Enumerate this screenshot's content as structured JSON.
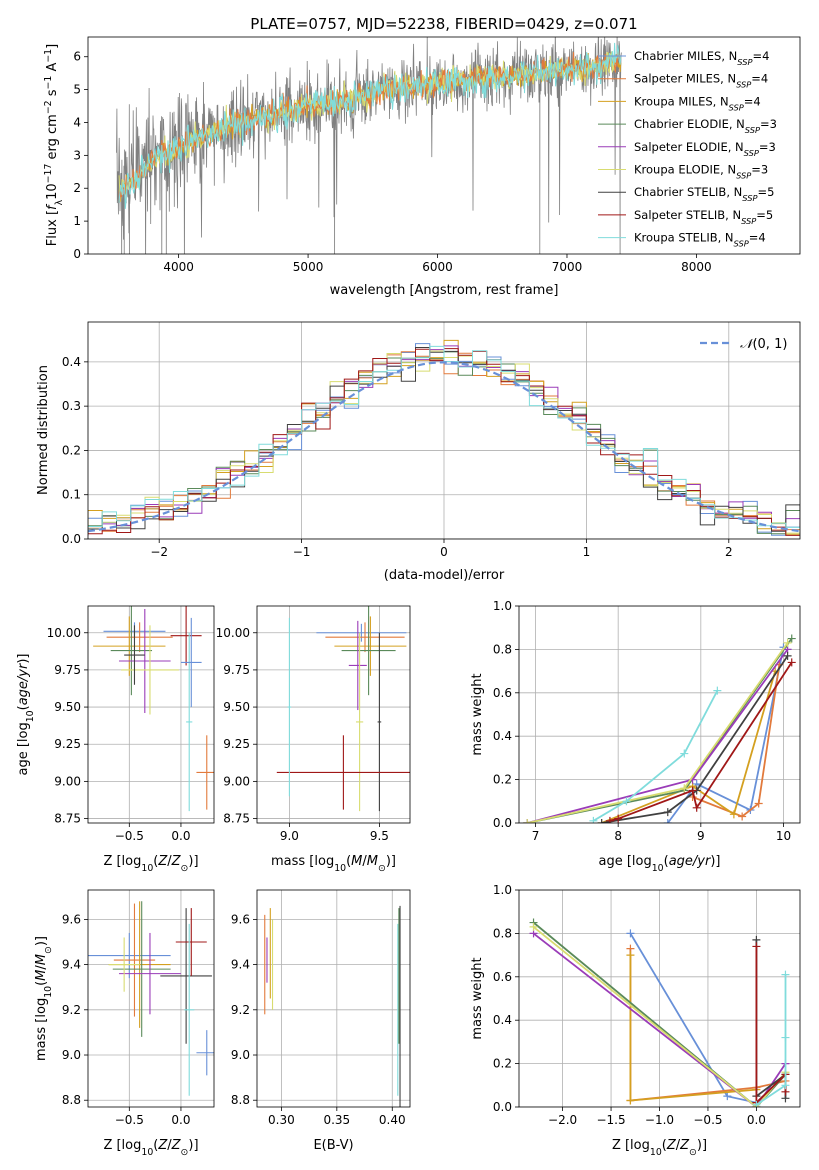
{
  "colors": {
    "chabrier_miles": "#6890d8",
    "salpeter_miles": "#e27a3c",
    "kroupa_miles": "#d4a020",
    "chabrier_elodie": "#5a8a5a",
    "salpeter_elodie": "#9a3cb8",
    "kroupa_elodie": "#d8dc70",
    "chabrier_stelib": "#404040",
    "salpeter_stelib": "#a01818",
    "kroupa_stelib": "#80dcdc",
    "data_spectrum": "#808080",
    "normal": "#6890d8",
    "grid": "#b0b0b0"
  },
  "chart_data": [
    {
      "id": "spectrum",
      "type": "line",
      "title": "PLATE=0757, MJD=52238, FIBERID=0429, z=0.071",
      "xlabel": "wavelength [Angstrom, rest frame]",
      "ylabel": "Flux [fλ10⁻¹⁷ erg cm⁻² s⁻¹ A⁻¹]",
      "xlim": [
        3300,
        8800
      ],
      "ylim": [
        0,
        6.6
      ],
      "xticks": [
        "4000",
        "5000",
        "6000",
        "7000",
        "8000"
      ],
      "yticks": [
        "0",
        "1",
        "2",
        "3",
        "4",
        "5",
        "6"
      ],
      "continuum": {
        "x": [
          3520,
          3600,
          3700,
          3800,
          3900,
          4000,
          4100,
          4200,
          4300,
          4400,
          4600,
          4800,
          5000,
          5200,
          5400,
          5600,
          5800,
          6000,
          6200,
          6400,
          6600,
          6800,
          7000,
          7200,
          7400
        ],
        "y": [
          2.1,
          2.3,
          2.5,
          2.9,
          3.1,
          3.2,
          3.4,
          3.6,
          3.8,
          3.9,
          4.1,
          4.3,
          4.5,
          4.6,
          4.8,
          5.0,
          5.1,
          5.2,
          5.3,
          5.35,
          5.45,
          5.5,
          5.6,
          5.7,
          5.9
        ]
      },
      "legend": [
        "Chabrier MILES, N_SSP=4",
        "Salpeter MILES, N_SSP=4",
        "Kroupa MILES, N_SSP=4",
        "Chabrier ELODIE, N_SSP=3",
        "Salpeter ELODIE, N_SSP=3",
        "Kroupa ELODIE, N_SSP=3",
        "Chabrier STELIB, N_SSP=5",
        "Salpeter STELIB, N_SSP=5",
        "Kroupa STELIB, N_SSP=4"
      ]
    },
    {
      "id": "residuals",
      "type": "line",
      "xlabel": "(data-model)/error",
      "ylabel": "Normed distribution",
      "xlim": [
        -2.5,
        2.5
      ],
      "ylim": [
        0,
        0.49
      ],
      "xticks": [
        "−2",
        "−1",
        "0",
        "1",
        "2"
      ],
      "yticks": [
        "0.0",
        "0.1",
        "0.2",
        "0.3",
        "0.4"
      ],
      "legend": [
        "𝒩(0, 1)"
      ]
    },
    {
      "id": "age_vs_z",
      "type": "scatter",
      "xlabel": "Z [log₁₀(Z/Z⊙)]",
      "ylabel": "age  [log₁₀(age/yr)]",
      "xlim": [
        -0.9,
        0.32
      ],
      "ylim": [
        8.72,
        10.18
      ],
      "xticks": [
        "−0.5",
        "0.0"
      ],
      "yticks": [
        "8.75",
        "9.00",
        "9.25",
        "9.50",
        "9.75",
        "10.00"
      ],
      "points": [
        {
          "x": -0.45,
          "y": 10.01,
          "xerr": 0.3,
          "yerr": 0.06
        },
        {
          "x": -0.4,
          "y": 9.97,
          "xerr": 0.32,
          "yerr": 0.1
        },
        {
          "x": -0.5,
          "y": 9.91,
          "xerr": 0.35,
          "yerr": 0.2
        },
        {
          "x": -0.48,
          "y": 9.88,
          "xerr": 0.2,
          "yerr": 0.3
        },
        {
          "x": -0.35,
          "y": 9.81,
          "xerr": 0.25,
          "yerr": 0.35
        },
        {
          "x": -0.3,
          "y": 9.75,
          "xerr": 0.28,
          "yerr": 0.3
        },
        {
          "x": -0.45,
          "y": 9.85,
          "xerr": 0.1,
          "yerr": 0.2
        },
        {
          "x": 0.05,
          "y": 9.98,
          "xerr": 0.15,
          "yerr": 0.2
        },
        {
          "x": 0.08,
          "y": 9.4,
          "xerr": 0.03,
          "yerr": 0.6
        },
        {
          "x": 0.1,
          "y": 9.8,
          "xerr": 0.1,
          "yerr": 0.3
        },
        {
          "x": 0.25,
          "y": 9.06,
          "xerr": 0.1,
          "yerr": 0.25
        }
      ]
    },
    {
      "id": "age_vs_mass",
      "type": "scatter",
      "xlabel": "mass [log₁₀(M/M⊙)]",
      "xlim": [
        8.82,
        9.67
      ],
      "ylim": [
        8.72,
        10.18
      ],
      "xticks": [
        "9.0",
        "9.5"
      ],
      "yticks": [
        "8.75",
        "9.00",
        "9.25",
        "9.50",
        "9.75",
        "10.00"
      ],
      "points": [
        {
          "x": 9.4,
          "y": 10.0,
          "xerr": 0.25,
          "yerr": 0.06
        },
        {
          "x": 9.42,
          "y": 9.97,
          "xerr": 0.22,
          "yerr": 0.1
        },
        {
          "x": 9.45,
          "y": 9.91,
          "xerr": 0.2,
          "yerr": 0.2
        },
        {
          "x": 9.44,
          "y": 9.88,
          "xerr": 0.15,
          "yerr": 0.3
        },
        {
          "x": 9.38,
          "y": 9.78,
          "xerr": 0.05,
          "yerr": 0.3
        },
        {
          "x": 9.39,
          "y": 9.4,
          "xerr": 0.02,
          "yerr": 0.6
        },
        {
          "x": 9.5,
          "y": 9.4,
          "xerr": 0.01,
          "yerr": 0.6
        },
        {
          "x": 9.3,
          "y": 9.06,
          "xerr": 0.37,
          "yerr": 0.25
        },
        {
          "x": 9.0,
          "y": 9.5,
          "xerr": 0.01,
          "yerr": 0.6
        }
      ]
    },
    {
      "id": "weight_vs_age",
      "type": "line",
      "xlabel": "age  [log₁₀(age/yr)]",
      "ylabel": "mass weight",
      "xlim": [
        6.8,
        10.2
      ],
      "ylim": [
        0,
        1.0
      ],
      "xticks": [
        "7",
        "8",
        "9",
        "10"
      ],
      "yticks": [
        "0.0",
        "0.2",
        "0.4",
        "0.6",
        "0.8",
        "1.0"
      ],
      "series": [
        {
          "key": "chabrier_miles",
          "x": [
            8.6,
            8.95,
            9.6,
            10.0
          ],
          "y": [
            0.0,
            0.18,
            0.06,
            0.81
          ]
        },
        {
          "key": "salpeter_miles",
          "x": [
            8.9,
            9.5,
            9.7,
            9.95
          ],
          "y": [
            0.12,
            0.03,
            0.09,
            0.73
          ]
        },
        {
          "key": "kroupa_miles",
          "x": [
            7.8,
            8.9,
            9.4,
            9.9
          ],
          "y": [
            0.0,
            0.17,
            0.04,
            0.7
          ]
        },
        {
          "key": "chabrier_elodie",
          "x": [
            6.9,
            8.8,
            10.1
          ],
          "y": [
            0.0,
            0.15,
            0.85
          ]
        },
        {
          "key": "salpeter_elodie",
          "x": [
            6.9,
            8.9,
            10.05
          ],
          "y": [
            0.0,
            0.2,
            0.8
          ]
        },
        {
          "key": "kroupa_elodie",
          "x": [
            6.9,
            8.8,
            10.05
          ],
          "y": [
            0.0,
            0.16,
            0.83
          ]
        },
        {
          "key": "chabrier_stelib",
          "x": [
            7.8,
            8.6,
            8.95,
            10.05
          ],
          "y": [
            0.0,
            0.05,
            0.15,
            0.77
          ]
        },
        {
          "key": "salpeter_stelib",
          "x": [
            7.9,
            8.0,
            8.9,
            8.95,
            10.1
          ],
          "y": [
            0.01,
            0.02,
            0.15,
            0.07,
            0.74
          ]
        },
        {
          "key": "kroupa_stelib",
          "x": [
            7.7,
            8.1,
            8.8,
            9.2
          ],
          "y": [
            0.01,
            0.1,
            0.32,
            0.61
          ]
        }
      ]
    },
    {
      "id": "mass_vs_z",
      "type": "scatter",
      "xlabel": "Z [log₁₀(Z/Z⊙)]",
      "ylabel": "mass [log₁₀(M/M⊙)]",
      "xlim": [
        -0.9,
        0.32
      ],
      "ylim": [
        8.77,
        9.73
      ],
      "xticks": [
        "−0.5",
        "0.0"
      ],
      "yticks": [
        "8.8",
        "9.0",
        "9.2",
        "9.4",
        "9.6"
      ],
      "points": [
        {
          "x": -0.5,
          "y": 9.44,
          "xerr": 0.4,
          "yerr": 0.1
        },
        {
          "x": -0.45,
          "y": 9.42,
          "xerr": 0.2,
          "yerr": 0.25
        },
        {
          "x": -0.4,
          "y": 9.4,
          "xerr": 0.3,
          "yerr": 0.28
        },
        {
          "x": -0.38,
          "y": 9.38,
          "xerr": 0.28,
          "yerr": 0.3
        },
        {
          "x": -0.3,
          "y": 9.36,
          "xerr": 0.3,
          "yerr": 0.18
        },
        {
          "x": -0.55,
          "y": 9.4,
          "xerr": 0.15,
          "yerr": 0.12
        },
        {
          "x": 0.05,
          "y": 9.35,
          "xerr": 0.25,
          "yerr": 0.3
        },
        {
          "x": 0.1,
          "y": 9.5,
          "xerr": 0.15,
          "yerr": 0.15
        },
        {
          "x": 0.08,
          "y": 9.2,
          "xerr": 0.05,
          "yerr": 0.38
        },
        {
          "x": 0.25,
          "y": 9.01,
          "xerr": 0.1,
          "yerr": 0.1
        }
      ]
    },
    {
      "id": "mass_vs_ebv",
      "type": "scatter",
      "xlabel": "E(B-V)",
      "xlim": [
        0.278,
        0.416
      ],
      "ylim": [
        8.77,
        9.73
      ],
      "xticks": [
        "0.30",
        "0.35",
        "0.40"
      ],
      "yticks": [
        "8.8",
        "9.0",
        "9.2",
        "9.4",
        "9.6"
      ],
      "points": [
        {
          "x": 0.285,
          "y": 9.4,
          "yerr": 0.22
        },
        {
          "x": 0.287,
          "y": 9.42,
          "yerr": 0.1
        },
        {
          "x": 0.29,
          "y": 9.45,
          "yerr": 0.2
        },
        {
          "x": 0.292,
          "y": 9.4,
          "yerr": 0.2
        },
        {
          "x": 0.405,
          "y": 9.2,
          "yerr": 0.38
        },
        {
          "x": 0.406,
          "y": 9.35,
          "yerr": 0.3
        },
        {
          "x": 0.407,
          "y": 9.01,
          "yerr": 0.65
        }
      ]
    },
    {
      "id": "weight_vs_z",
      "type": "line",
      "xlabel": "Z [log₁₀(Z/Z⊙)]",
      "ylabel": "mass weight",
      "xlim": [
        -2.45,
        0.45
      ],
      "ylim": [
        0,
        1.0
      ],
      "xticks": [
        "−2.0",
        "−1.5",
        "−1.0",
        "−0.5",
        "0.0"
      ],
      "yticks": [
        "0.0",
        "0.2",
        "0.4",
        "0.6",
        "0.8",
        "1.0"
      ],
      "series": [
        {
          "key": "chabrier_miles",
          "x": [
            -1.3,
            -0.3,
            0.0,
            0.3
          ],
          "y": [
            0.8,
            0.05,
            0.02,
            0.15
          ]
        },
        {
          "key": "salpeter_miles",
          "x": [
            -1.3,
            -1.3,
            0.0,
            0.3
          ],
          "y": [
            0.73,
            0.03,
            0.09,
            0.12
          ]
        },
        {
          "key": "kroupa_miles",
          "x": [
            -1.3,
            -1.3,
            0.0
          ],
          "y": [
            0.7,
            0.03,
            0.08
          ]
        },
        {
          "key": "chabrier_elodie",
          "x": [
            -2.3,
            0.0,
            0.3
          ],
          "y": [
            0.85,
            0.0,
            0.15
          ]
        },
        {
          "key": "salpeter_elodie",
          "x": [
            -2.3,
            0.0,
            0.3
          ],
          "y": [
            0.8,
            0.0,
            0.2
          ]
        },
        {
          "key": "kroupa_elodie",
          "x": [
            -2.3,
            0.0,
            0.3
          ],
          "y": [
            0.83,
            0.0,
            0.16
          ]
        },
        {
          "key": "chabrier_stelib",
          "x": [
            0.0,
            0.0,
            0.3,
            0.3
          ],
          "y": [
            0.77,
            0.05,
            0.15,
            0.04
          ]
        },
        {
          "key": "salpeter_stelib",
          "x": [
            0.0,
            0.0,
            0.3,
            0.3
          ],
          "y": [
            0.74,
            0.02,
            0.15,
            0.07
          ]
        },
        {
          "key": "kroupa_stelib",
          "x": [
            0.0,
            0.3,
            0.3,
            0.3
          ],
          "y": [
            0.01,
            0.1,
            0.32,
            0.61
          ]
        }
      ]
    }
  ]
}
